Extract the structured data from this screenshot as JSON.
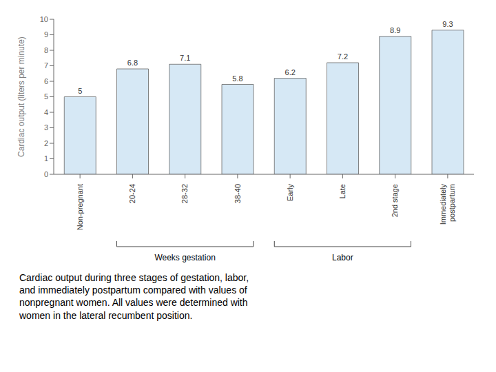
{
  "chart_data": {
    "type": "bar",
    "categories": [
      "Non-pregnant",
      "20-24",
      "28-32",
      "38-40",
      "Early",
      "Late",
      "2nd stage",
      "Immediately\npostpartum"
    ],
    "values": [
      5.0,
      6.8,
      7.1,
      5.8,
      6.2,
      7.2,
      8.9,
      9.3
    ],
    "color": "#d6e8f5",
    "ylabel": "Cardiac output (liters per minute)",
    "ylim": [
      0,
      10
    ],
    "yticks": [
      0,
      1,
      2,
      3,
      4,
      5,
      6,
      7,
      8,
      9,
      10
    ],
    "data_labels": true,
    "grid": false,
    "groups": [
      {
        "label": "Weeks gestation",
        "categories": [
          "20-24",
          "28-32",
          "38-40"
        ]
      },
      {
        "label": "Labor",
        "categories": [
          "Early",
          "Late",
          "2nd stage"
        ]
      }
    ],
    "caption": "Cardiac output during three stages of gestation, labor,\nand immediately postpartum compared with values of\nnonpregnant women. All values were determined with\nwomen in the lateral recumbent position."
  }
}
